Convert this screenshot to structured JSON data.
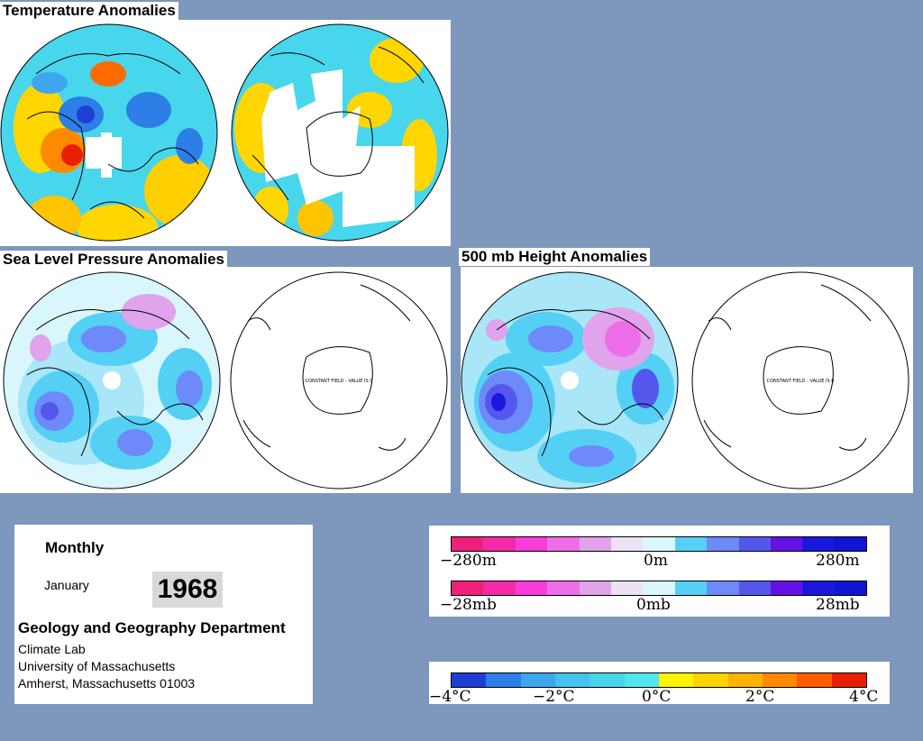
{
  "titles": {
    "temperature": "Temperature Anomalies",
    "slp": "Sea Level Pressure Anomalies",
    "height500": "500 mb Height Anomalies"
  },
  "maps": {
    "constant_field_text": "CONSTANT FIELD - VALUE IS 0"
  },
  "info": {
    "period": "Monthly",
    "month": "January",
    "year": "1968",
    "department": "Geology and Geography Department",
    "lab": "Climate Lab",
    "university": "University of Massachusetts",
    "city": "Amherst, Massachusetts 01003"
  },
  "scales": {
    "height": {
      "left": "−280m",
      "center": "0m",
      "right": "280m"
    },
    "pressure": {
      "left": "−28mb",
      "center": "0mb",
      "right": "28mb"
    },
    "temperature": [
      "−4°C",
      "−2°C",
      "0°C",
      "2°C",
      "4°C"
    ]
  },
  "colors": {
    "background": "#7d97bd",
    "anomaly_scale": [
      "#f0207a",
      "#f52aa8",
      "#f83ddb",
      "#ee6eea",
      "#e0a3ec",
      "#ebe3f5",
      "#d8f6fb",
      "#55d0f5",
      "#6d8af8",
      "#5557ec",
      "#6412e3",
      "#1a18de",
      "#0f15d0"
    ],
    "temperature_scale": [
      "#1e3fd6",
      "#2d7ee6",
      "#3da6ef",
      "#43c2ef",
      "#46d6ec",
      "#53e6ee",
      "#fff200",
      "#ffd200",
      "#ffb200",
      "#ff8a00",
      "#ff5c00",
      "#e82000"
    ]
  }
}
